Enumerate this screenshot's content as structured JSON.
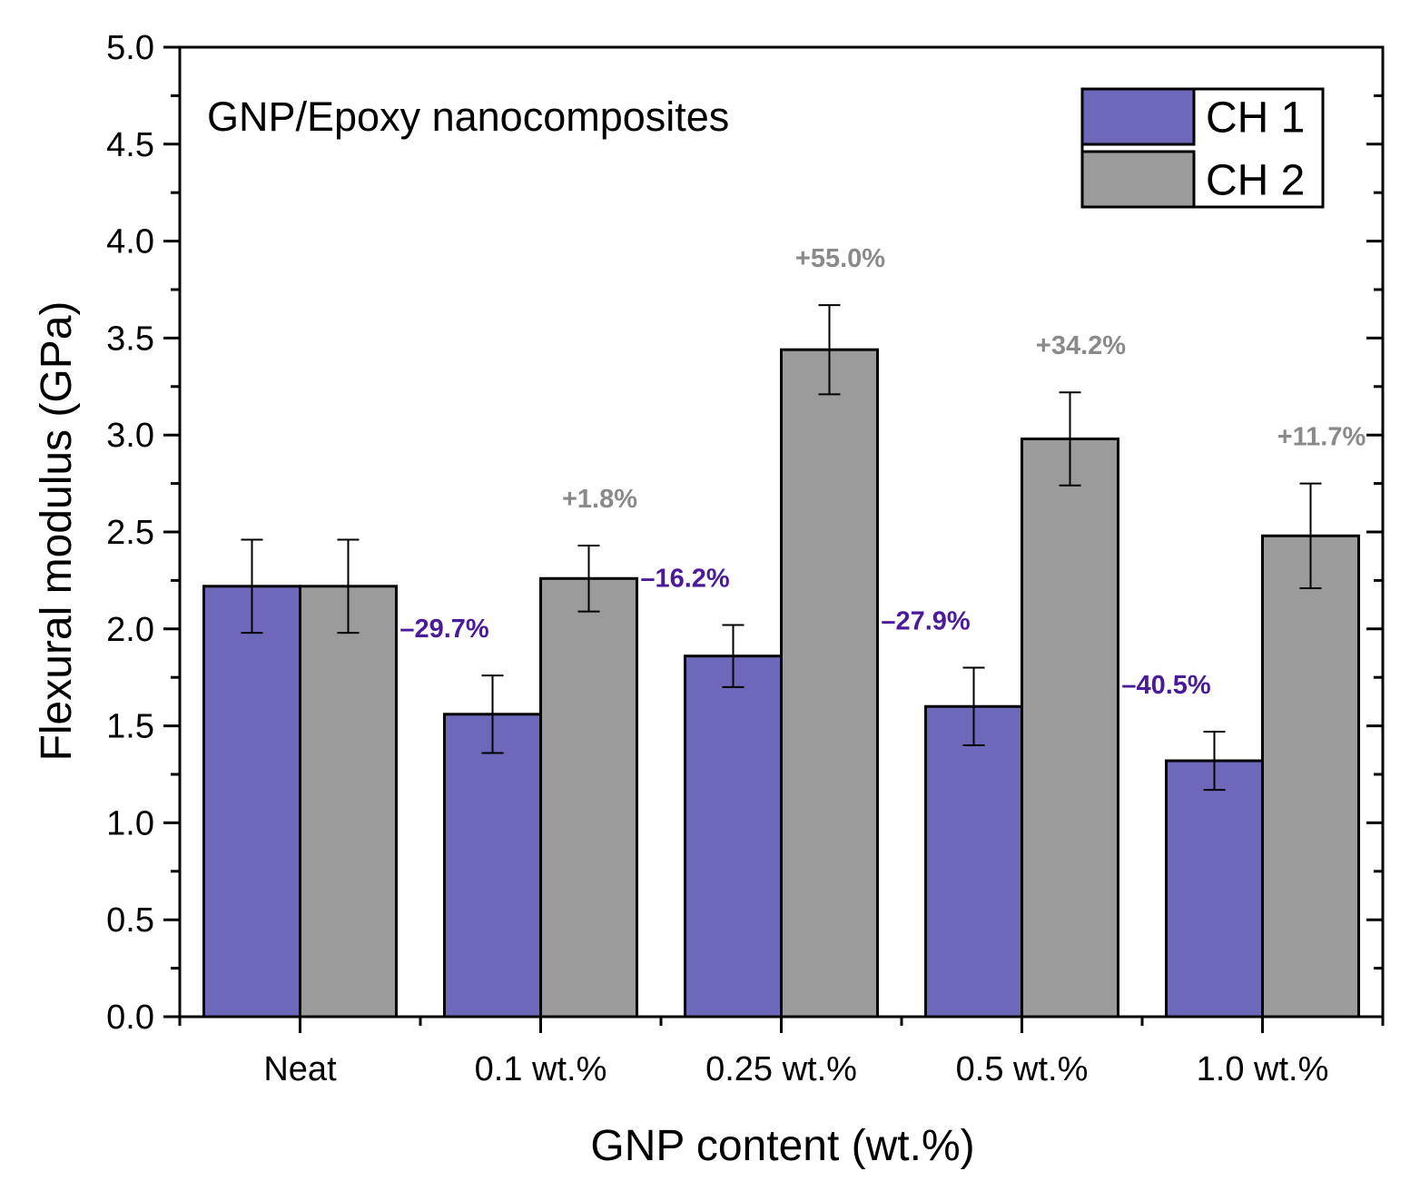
{
  "chart_data": {
    "type": "bar",
    "title": "GNP/Epoxy nanocomposites",
    "xlabel": "GNP content (wt.%)",
    "ylabel": "Flexural modulus (GPa)",
    "ylim": [
      0,
      5
    ],
    "yticks": [
      "0.0",
      "0.5",
      "1.0",
      "1.5",
      "2.0",
      "2.5",
      "3.0",
      "3.5",
      "4.0",
      "4.5",
      "5.0"
    ],
    "categories": [
      "Neat",
      "0.1 wt.%",
      "0.25 wt.%",
      "0.5 wt.%",
      "1.0 wt.%"
    ],
    "grid": false,
    "legend_position": "top-right",
    "series": [
      {
        "name": "CH 1",
        "color": "#6e68bb",
        "label_color": "#4b1a99",
        "values": [
          2.22,
          1.56,
          1.86,
          1.6,
          1.32
        ],
        "errors": [
          0.24,
          0.2,
          0.16,
          0.2,
          0.15
        ],
        "labels": [
          "",
          "–29.7%",
          "–16.2%",
          "–27.9%",
          "–40.5%"
        ]
      },
      {
        "name": "CH 2",
        "color": "#9b9b9b",
        "label_color": "#8a8a8a",
        "values": [
          2.22,
          2.26,
          3.44,
          2.98,
          2.48
        ],
        "errors": [
          0.24,
          0.17,
          0.23,
          0.24,
          0.27
        ],
        "labels": [
          "",
          "+1.8%",
          "+55.0%",
          "+34.2%",
          "+11.7%"
        ]
      }
    ]
  }
}
